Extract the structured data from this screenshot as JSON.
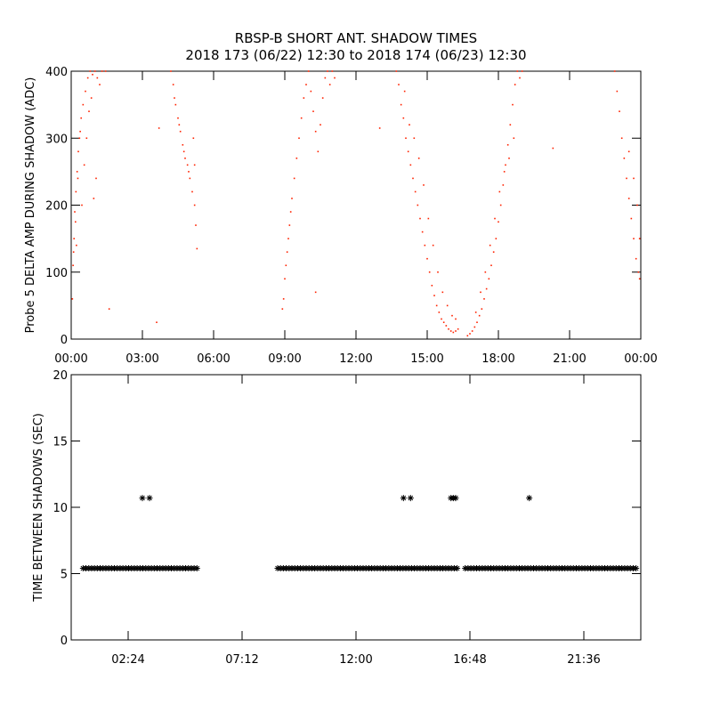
{
  "title": {
    "line1": "RBSP-B SHORT ANT. SHADOW TIMES",
    "line2": "2018 173 (06/22) 12:30 to 2018 174 (06/23) 12:30"
  },
  "colors": {
    "top_points": "#ff2200",
    "bottom_points": "#000000",
    "axes": "#000000"
  },
  "chart_data": [
    {
      "type": "scatter",
      "ylabel": "Probe 5 DELTA AMP DURING SHADOW (ADC)",
      "xlim_hours": [
        0,
        24
      ],
      "ylim": [
        0,
        400
      ],
      "xticks": [
        {
          "label": "00:00",
          "hours": 0
        },
        {
          "label": "03:00",
          "hours": 3
        },
        {
          "label": "06:00",
          "hours": 6
        },
        {
          "label": "09:00",
          "hours": 9
        },
        {
          "label": "12:00",
          "hours": 12
        },
        {
          "label": "15:00",
          "hours": 15
        },
        {
          "label": "18:00",
          "hours": 18
        },
        {
          "label": "21:00",
          "hours": 21
        },
        {
          "label": "00:00",
          "hours": 24
        }
      ],
      "yticks": [
        {
          "label": "0",
          "value": 0
        },
        {
          "label": "100",
          "value": 100
        },
        {
          "label": "200",
          "value": 200
        },
        {
          "label": "300",
          "value": 300
        },
        {
          "label": "400",
          "value": 400
        }
      ],
      "marker": "dot",
      "series_points_hours_value": [
        [
          0.05,
          60
        ],
        [
          0.08,
          110
        ],
        [
          0.12,
          150
        ],
        [
          0.15,
          190
        ],
        [
          0.2,
          220
        ],
        [
          0.25,
          250
        ],
        [
          0.3,
          280
        ],
        [
          0.35,
          300
        ],
        [
          0.42,
          330
        ],
        [
          0.5,
          350
        ],
        [
          0.6,
          370
        ],
        [
          0.7,
          390
        ],
        [
          0.8,
          400
        ],
        [
          0.9,
          395
        ],
        [
          1.0,
          400
        ],
        [
          1.1,
          390
        ],
        [
          1.2,
          380
        ],
        [
          1.3,
          400
        ],
        [
          1.45,
          400
        ],
        [
          0.1,
          130
        ],
        [
          0.18,
          175
        ],
        [
          0.28,
          240
        ],
        [
          0.38,
          310
        ],
        [
          0.55,
          260
        ],
        [
          0.65,
          300
        ],
        [
          0.75,
          340
        ],
        [
          0.85,
          360
        ],
        [
          0.95,
          210
        ],
        [
          1.05,
          240
        ],
        [
          0.45,
          200
        ],
        [
          0.22,
          140
        ],
        [
          4.2,
          400
        ],
        [
          4.3,
          380
        ],
        [
          4.4,
          350
        ],
        [
          4.5,
          330
        ],
        [
          4.6,
          310
        ],
        [
          4.7,
          290
        ],
        [
          4.8,
          270
        ],
        [
          4.9,
          260
        ],
        [
          5.0,
          240
        ],
        [
          5.1,
          220
        ],
        [
          5.2,
          200
        ],
        [
          5.25,
          170
        ],
        [
          5.3,
          135
        ],
        [
          4.35,
          360
        ],
        [
          4.55,
          320
        ],
        [
          4.75,
          280
        ],
        [
          4.95,
          250
        ],
        [
          5.15,
          300
        ],
        [
          5.2,
          260
        ],
        [
          8.9,
          45
        ],
        [
          8.95,
          60
        ],
        [
          9.0,
          90
        ],
        [
          9.05,
          110
        ],
        [
          9.1,
          130
        ],
        [
          9.15,
          150
        ],
        [
          9.2,
          170
        ],
        [
          9.25,
          190
        ],
        [
          9.3,
          210
        ],
        [
          9.4,
          240
        ],
        [
          9.5,
          270
        ],
        [
          9.6,
          300
        ],
        [
          9.7,
          330
        ],
        [
          9.8,
          360
        ],
        [
          9.9,
          380
        ],
        [
          10.0,
          400
        ],
        [
          10.1,
          370
        ],
        [
          10.2,
          340
        ],
        [
          10.3,
          310
        ],
        [
          10.4,
          280
        ],
        [
          10.5,
          320
        ],
        [
          10.6,
          360
        ],
        [
          10.7,
          390
        ],
        [
          10.8,
          400
        ],
        [
          10.9,
          380
        ],
        [
          11.0,
          400
        ],
        [
          11.1,
          390
        ],
        [
          13.7,
          400
        ],
        [
          13.8,
          380
        ],
        [
          13.9,
          350
        ],
        [
          14.0,
          330
        ],
        [
          14.1,
          300
        ],
        [
          14.2,
          280
        ],
        [
          14.3,
          260
        ],
        [
          14.4,
          240
        ],
        [
          14.5,
          220
        ],
        [
          14.6,
          200
        ],
        [
          14.7,
          180
        ],
        [
          14.8,
          160
        ],
        [
          14.9,
          140
        ],
        [
          15.0,
          120
        ],
        [
          15.1,
          100
        ],
        [
          15.2,
          80
        ],
        [
          15.3,
          65
        ],
        [
          15.4,
          50
        ],
        [
          15.5,
          40
        ],
        [
          15.6,
          30
        ],
        [
          15.7,
          25
        ],
        [
          15.8,
          20
        ],
        [
          15.9,
          15
        ],
        [
          16.0,
          12
        ],
        [
          16.1,
          10
        ],
        [
          16.2,
          12
        ],
        [
          16.3,
          15
        ],
        [
          14.05,
          370
        ],
        [
          14.25,
          320
        ],
        [
          14.45,
          300
        ],
        [
          14.65,
          270
        ],
        [
          14.85,
          230
        ],
        [
          15.05,
          180
        ],
        [
          15.25,
          140
        ],
        [
          15.45,
          100
        ],
        [
          15.65,
          70
        ],
        [
          15.85,
          50
        ],
        [
          16.05,
          35
        ],
        [
          16.2,
          30
        ],
        [
          16.7,
          5
        ],
        [
          16.8,
          8
        ],
        [
          16.9,
          12
        ],
        [
          17.0,
          18
        ],
        [
          17.1,
          25
        ],
        [
          17.2,
          35
        ],
        [
          17.3,
          45
        ],
        [
          17.4,
          60
        ],
        [
          17.5,
          75
        ],
        [
          17.6,
          90
        ],
        [
          17.7,
          110
        ],
        [
          17.8,
          130
        ],
        [
          17.9,
          150
        ],
        [
          18.0,
          175
        ],
        [
          18.1,
          200
        ],
        [
          18.2,
          230
        ],
        [
          18.3,
          260
        ],
        [
          18.4,
          290
        ],
        [
          18.5,
          320
        ],
        [
          18.6,
          350
        ],
        [
          18.7,
          380
        ],
        [
          18.8,
          400
        ],
        [
          18.9,
          390
        ],
        [
          19.0,
          400
        ],
        [
          17.05,
          40
        ],
        [
          17.25,
          70
        ],
        [
          17.45,
          100
        ],
        [
          17.65,
          140
        ],
        [
          17.85,
          180
        ],
        [
          18.05,
          220
        ],
        [
          18.25,
          250
        ],
        [
          18.45,
          270
        ],
        [
          18.65,
          300
        ],
        [
          22.9,
          400
        ],
        [
          23.0,
          370
        ],
        [
          23.1,
          340
        ],
        [
          23.2,
          300
        ],
        [
          23.3,
          270
        ],
        [
          23.4,
          240
        ],
        [
          23.5,
          210
        ],
        [
          23.6,
          180
        ],
        [
          23.7,
          150
        ],
        [
          23.8,
          120
        ],
        [
          23.9,
          100
        ],
        [
          23.95,
          90
        ],
        [
          23.5,
          280
        ],
        [
          23.7,
          240
        ],
        [
          23.85,
          200
        ],
        [
          23.95,
          150
        ],
        [
          1.6,
          45
        ],
        [
          3.7,
          315
        ],
        [
          3.6,
          25
        ],
        [
          10.3,
          70
        ],
        [
          13.0,
          315
        ],
        [
          20.3,
          285
        ]
      ]
    },
    {
      "type": "scatter",
      "ylabel": "TIME BETWEEN SHADOWS (SEC)",
      "xlim_hours": [
        0,
        24
      ],
      "ylim": [
        0,
        20
      ],
      "xticks": [
        {
          "label": "02:24",
          "hours": 2.4
        },
        {
          "label": "07:12",
          "hours": 7.2
        },
        {
          "label": "12:00",
          "hours": 12.0
        },
        {
          "label": "16:48",
          "hours": 16.8
        },
        {
          "label": "21:36",
          "hours": 21.6
        }
      ],
      "yticks": [
        {
          "label": "0",
          "value": 0
        },
        {
          "label": "5",
          "value": 5
        },
        {
          "label": "10",
          "value": 10
        },
        {
          "label": "15",
          "value": 15
        },
        {
          "label": "20",
          "value": 20
        }
      ],
      "marker": "asterisk",
      "baseline_value": 5.4,
      "baseline_segments_hours": [
        [
          0.5,
          5.4
        ],
        [
          8.7,
          16.3
        ],
        [
          16.6,
          23.9
        ]
      ],
      "baseline_step_hours": 0.12,
      "outliers_hours_value": [
        [
          3.0,
          10.7
        ],
        [
          3.3,
          10.7
        ],
        [
          14.0,
          10.7
        ],
        [
          14.3,
          10.7
        ],
        [
          16.0,
          10.7
        ],
        [
          16.1,
          10.7
        ],
        [
          16.2,
          10.7
        ],
        [
          19.3,
          10.7
        ]
      ]
    }
  ]
}
